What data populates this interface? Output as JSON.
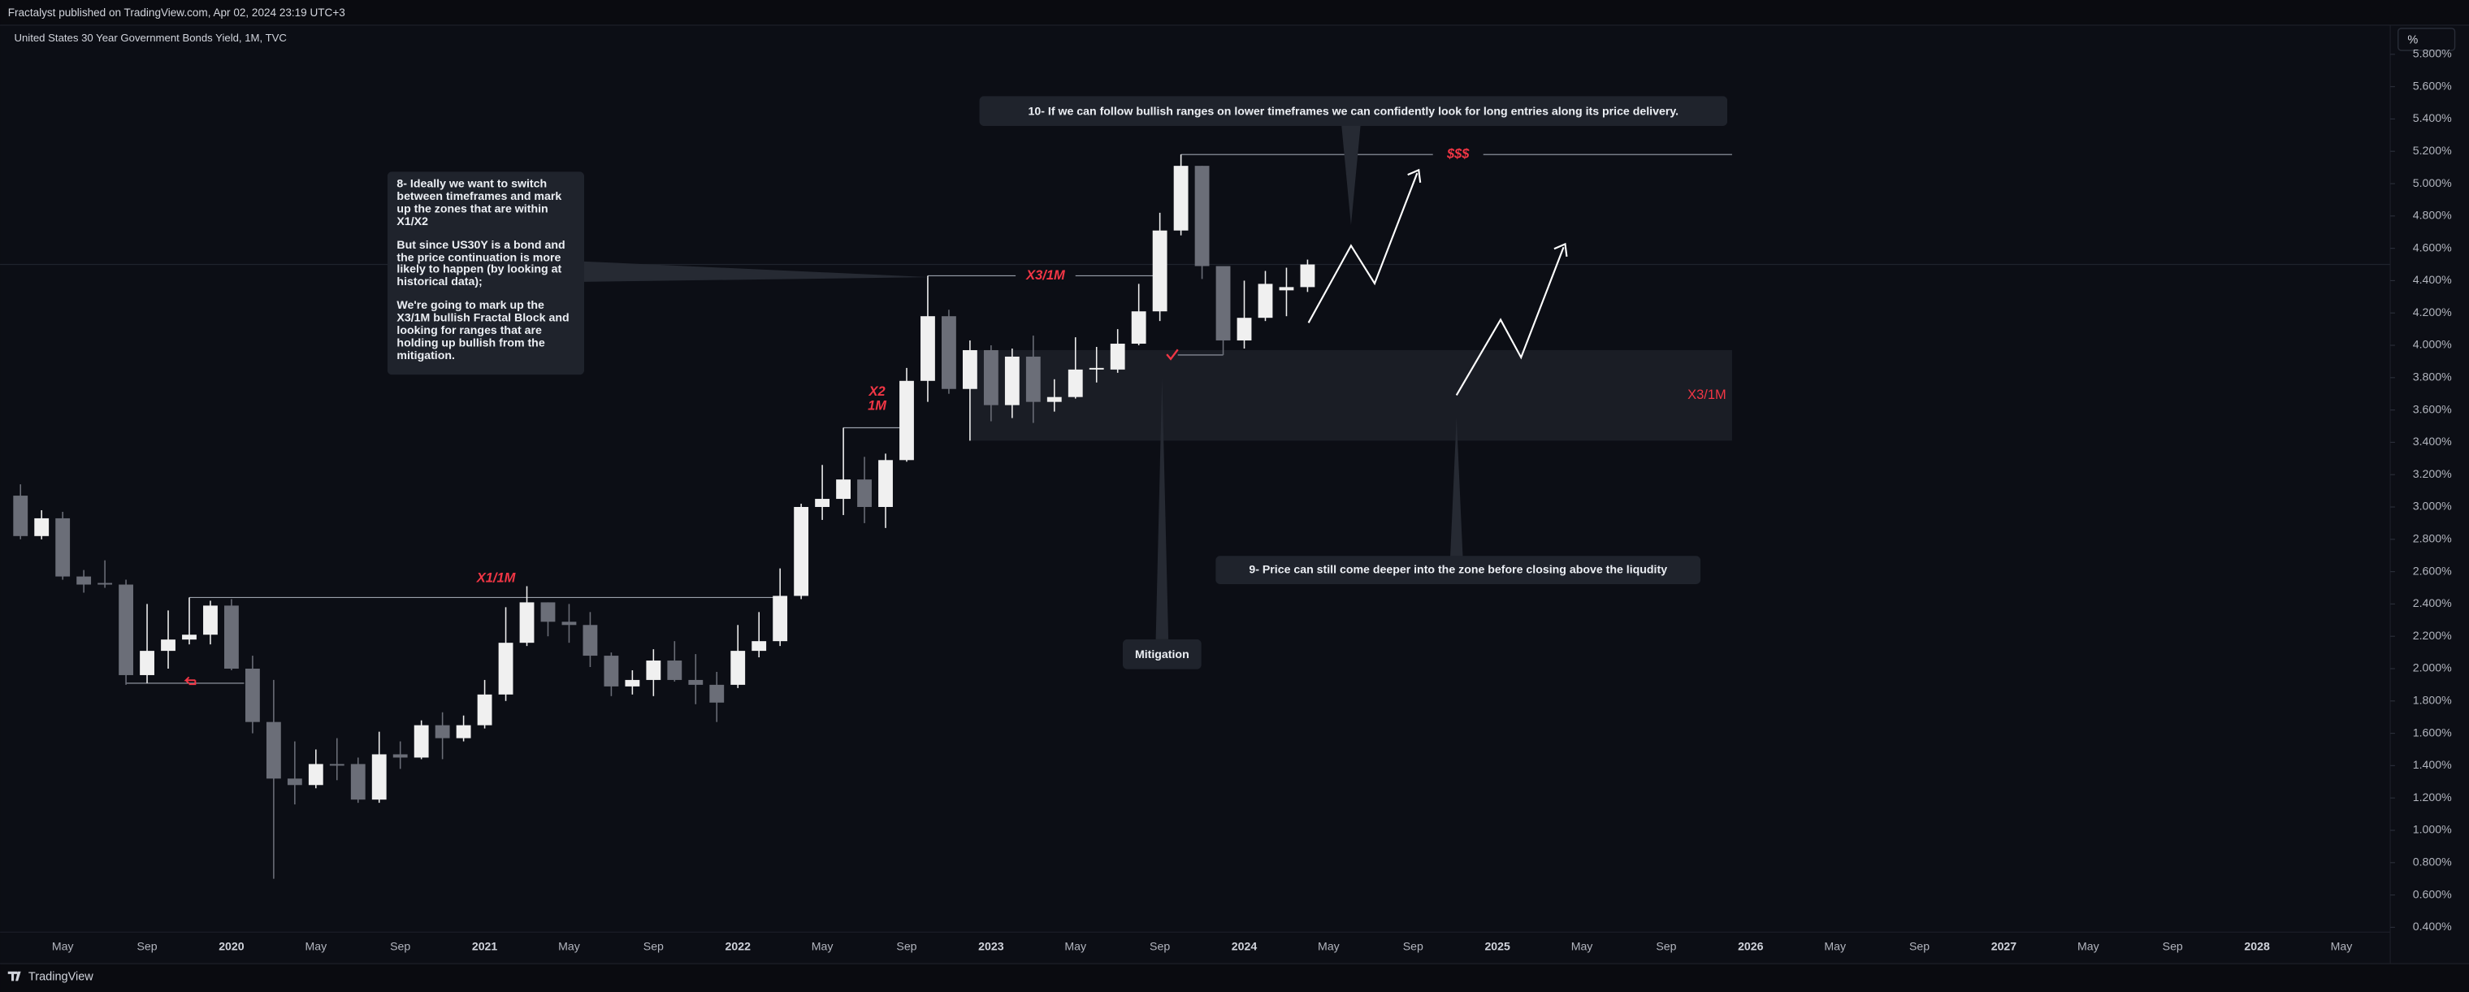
{
  "header": {
    "publisher": "Fractalyst published on TradingView.com, Apr 02, 2024 23:19 UTC+3",
    "unit_button": "%"
  },
  "footer": {
    "brand": "TradingView"
  },
  "chart_data": {
    "type": "candlestick",
    "title": "United States 30 Year Government Bonds Yield, 1M, TVC",
    "up_color": "#f0f0f0",
    "down_color": "#6b6e78",
    "annotation_color": "#f23645",
    "grid": false,
    "x": [
      "2019-03",
      "2019-04",
      "2019-05",
      "2019-06",
      "2019-07",
      "2019-08",
      "2019-09",
      "2019-10",
      "2019-11",
      "2019-12",
      "2020-01",
      "2020-02",
      "2020-03",
      "2020-04",
      "2020-05",
      "2020-06",
      "2020-07",
      "2020-08",
      "2020-09",
      "2020-10",
      "2020-11",
      "2020-12",
      "2021-01",
      "2021-02",
      "2021-03",
      "2021-04",
      "2021-05",
      "2021-06",
      "2021-07",
      "2021-08",
      "2021-09",
      "2021-10",
      "2021-11",
      "2021-12",
      "2022-01",
      "2022-02",
      "2022-03",
      "2022-04",
      "2022-05",
      "2022-06",
      "2022-07",
      "2022-08",
      "2022-09",
      "2022-10",
      "2022-11",
      "2022-12",
      "2023-01",
      "2023-02",
      "2023-03",
      "2023-04",
      "2023-05",
      "2023-06",
      "2023-07",
      "2023-08",
      "2023-09",
      "2023-10",
      "2023-11",
      "2023-12",
      "2024-01",
      "2024-02",
      "2024-03",
      "2024-04"
    ],
    "open": [
      3.07,
      2.82,
      2.93,
      2.57,
      2.53,
      2.52,
      1.96,
      2.11,
      2.18,
      2.21,
      2.39,
      2.0,
      1.67,
      1.32,
      1.28,
      1.41,
      1.41,
      1.19,
      1.47,
      1.45,
      1.65,
      1.57,
      1.65,
      1.84,
      2.16,
      2.41,
      2.29,
      2.27,
      2.08,
      1.89,
      1.93,
      2.05,
      1.93,
      1.9,
      1.9,
      2.11,
      2.17,
      2.45,
      3.0,
      3.05,
      3.17,
      3.0,
      3.29,
      3.78,
      4.18,
      3.73,
      3.97,
      3.63,
      3.93,
      3.65,
      3.68,
      3.85,
      3.85,
      4.01,
      4.21,
      4.71,
      5.11,
      4.49,
      4.03,
      4.17,
      4.34,
      4.36
    ],
    "high": [
      3.14,
      2.98,
      2.97,
      2.61,
      2.67,
      2.55,
      2.4,
      2.36,
      2.44,
      2.42,
      2.43,
      2.08,
      1.93,
      1.55,
      1.5,
      1.57,
      1.45,
      1.61,
      1.55,
      1.68,
      1.73,
      1.71,
      1.93,
      2.38,
      2.51,
      2.41,
      2.4,
      2.35,
      2.1,
      1.99,
      2.12,
      2.17,
      2.09,
      1.98,
      2.27,
      2.35,
      2.62,
      3.02,
      3.26,
      3.49,
      3.31,
      3.33,
      3.86,
      4.43,
      4.22,
      4.03,
      4.0,
      3.98,
      4.06,
      3.79,
      4.05,
      3.99,
      4.1,
      4.38,
      4.82,
      5.18,
      5.11,
      4.49,
      4.4,
      4.46,
      4.48,
      4.53
    ],
    "low": [
      2.8,
      2.8,
      2.55,
      2.47,
      2.5,
      1.9,
      1.91,
      2.0,
      2.15,
      2.15,
      1.99,
      1.6,
      0.7,
      1.16,
      1.26,
      1.31,
      1.17,
      1.17,
      1.38,
      1.44,
      1.44,
      1.55,
      1.63,
      1.8,
      2.14,
      2.2,
      2.16,
      2.01,
      1.83,
      1.84,
      1.83,
      1.92,
      1.78,
      1.67,
      1.88,
      2.07,
      2.14,
      2.43,
      2.92,
      2.95,
      2.9,
      2.87,
      3.28,
      3.65,
      3.7,
      3.41,
      3.53,
      3.55,
      3.52,
      3.59,
      3.67,
      3.77,
      3.83,
      4.0,
      4.15,
      4.68,
      4.41,
      3.94,
      3.98,
      4.15,
      4.18,
      4.33
    ],
    "close": [
      2.82,
      2.93,
      2.57,
      2.52,
      2.52,
      1.96,
      2.11,
      2.18,
      2.21,
      2.39,
      2.0,
      1.67,
      1.32,
      1.28,
      1.41,
      1.4,
      1.19,
      1.47,
      1.45,
      1.65,
      1.57,
      1.65,
      1.84,
      2.16,
      2.41,
      2.29,
      2.27,
      2.08,
      1.89,
      1.93,
      2.05,
      1.93,
      1.9,
      1.79,
      2.11,
      2.17,
      2.45,
      3.0,
      3.05,
      3.17,
      3.0,
      3.29,
      3.78,
      4.18,
      3.73,
      3.97,
      3.63,
      3.93,
      3.65,
      3.68,
      3.85,
      3.86,
      4.01,
      4.21,
      4.71,
      5.11,
      4.49,
      4.03,
      4.17,
      4.38,
      4.36,
      4.5
    ],
    "ylim": [
      0.37,
      5.98
    ],
    "yticks": [
      {
        "value": 0.4,
        "label": "0.400%"
      },
      {
        "value": 0.6,
        "label": "0.600%"
      },
      {
        "value": 0.8,
        "label": "0.800%"
      },
      {
        "value": 1.0,
        "label": "1.000%"
      },
      {
        "value": 1.2,
        "label": "1.200%"
      },
      {
        "value": 1.4,
        "label": "1.400%"
      },
      {
        "value": 1.6,
        "label": "1.600%"
      },
      {
        "value": 1.8,
        "label": "1.800%"
      },
      {
        "value": 2.0,
        "label": "2.000%"
      },
      {
        "value": 2.2,
        "label": "2.200%"
      },
      {
        "value": 2.4,
        "label": "2.400%"
      },
      {
        "value": 2.6,
        "label": "2.600%"
      },
      {
        "value": 2.8,
        "label": "2.800%"
      },
      {
        "value": 3.0,
        "label": "3.000%"
      },
      {
        "value": 3.2,
        "label": "3.200%"
      },
      {
        "value": 3.4,
        "label": "3.400%"
      },
      {
        "value": 3.6,
        "label": "3.600%"
      },
      {
        "value": 3.8,
        "label": "3.800%"
      },
      {
        "value": 4.0,
        "label": "4.000%"
      },
      {
        "value": 4.2,
        "label": "4.200%"
      },
      {
        "value": 4.4,
        "label": "4.400%"
      },
      {
        "value": 4.6,
        "label": "4.600%"
      },
      {
        "value": 4.8,
        "label": "4.800%"
      },
      {
        "value": 5.0,
        "label": "5.000%"
      },
      {
        "value": 5.2,
        "label": "5.200%"
      },
      {
        "value": 5.4,
        "label": "5.400%"
      },
      {
        "value": 5.6,
        "label": "5.600%"
      },
      {
        "value": 5.8,
        "label": "5.800%"
      }
    ],
    "xticks": [
      {
        "value": "2019-05",
        "label": "May"
      },
      {
        "value": "2019-09",
        "label": "Sep"
      },
      {
        "value": "2020-01",
        "label": "2020"
      },
      {
        "value": "2020-05",
        "label": "May"
      },
      {
        "value": "2020-09",
        "label": "Sep"
      },
      {
        "value": "2021-01",
        "label": "2021"
      },
      {
        "value": "2021-05",
        "label": "May"
      },
      {
        "value": "2021-09",
        "label": "Sep"
      },
      {
        "value": "2022-01",
        "label": "2022"
      },
      {
        "value": "2022-05",
        "label": "May"
      },
      {
        "value": "2022-09",
        "label": "Sep"
      },
      {
        "value": "2023-01",
        "label": "2023"
      },
      {
        "value": "2023-05",
        "label": "May"
      },
      {
        "value": "2023-09",
        "label": "Sep"
      },
      {
        "value": "2024-01",
        "label": "2024"
      },
      {
        "value": "2024-05",
        "label": "May"
      },
      {
        "value": "2024-09",
        "label": "Sep"
      },
      {
        "value": "2025-01",
        "label": "2025"
      },
      {
        "value": "2025-05",
        "label": "May"
      },
      {
        "value": "2025-09",
        "label": "Sep"
      },
      {
        "value": "2026-01",
        "label": "2026"
      },
      {
        "value": "2026-05",
        "label": "May"
      },
      {
        "value": "2026-09",
        "label": "Sep"
      },
      {
        "value": "2027-01",
        "label": "2027"
      },
      {
        "value": "2027-05",
        "label": "May"
      },
      {
        "value": "2027-09",
        "label": "Sep"
      },
      {
        "value": "2028-01",
        "label": "2028"
      },
      {
        "value": "2028-05",
        "label": "May"
      }
    ],
    "level_labels": [
      "X1/1M",
      "X2",
      "1M",
      "X3/1M",
      "$$$",
      "X3/1M"
    ],
    "note_8": [
      "8- Ideally we want to switch between timeframes and mark up the zones that are within X1/X2",
      "But since US30Y is a bond and the price continuation is more likely to happen (by looking at historical data);",
      "We're going to mark up the X3/1M bullish Fractal Block and looking for ranges that are holding up bullish from the mitigation."
    ],
    "note_9": "9- Price can still come deeper into the zone before closing above the liqudity",
    "note_10": "10- If we can follow bullish ranges on lower timeframes we can confidently look for long entries along its price delivery.",
    "mitigation_label": "Mitigation"
  }
}
